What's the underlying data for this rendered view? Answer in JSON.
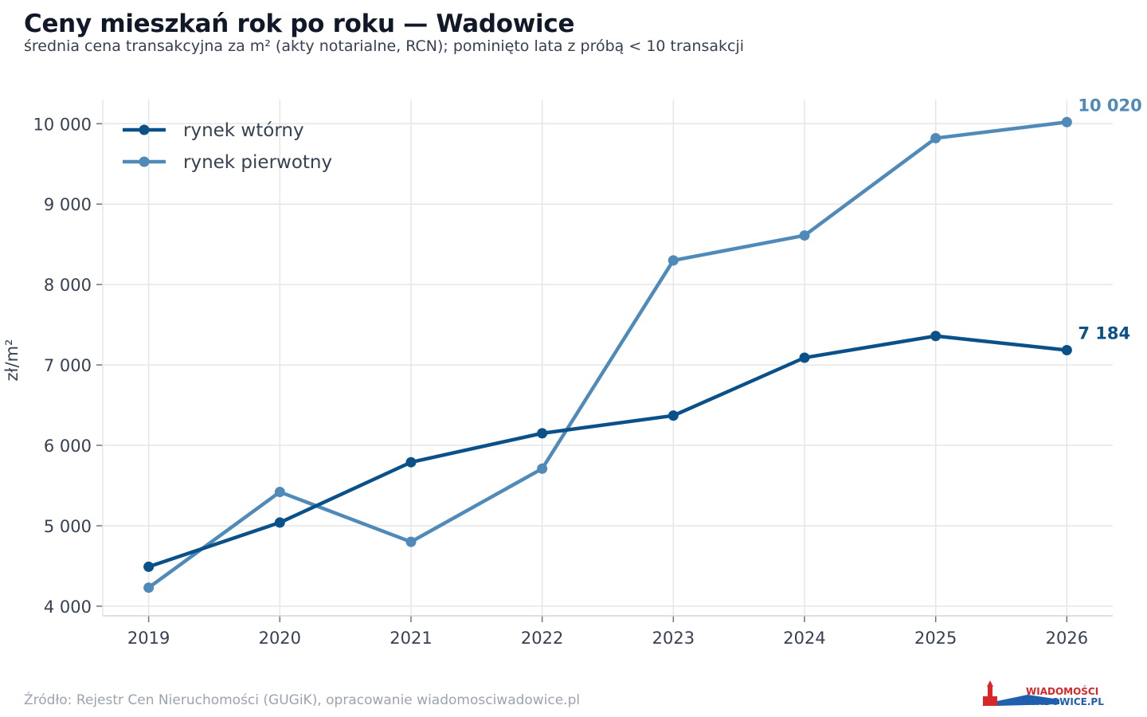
{
  "chart_data": {
    "type": "line",
    "title": "Ceny mieszkań rok po roku — Wadowice",
    "subtitle": "średnia cena transakcyjna za m² (akty notarialne, RCN); pominięto lata z próbą < 10 transakcji",
    "ylabel": "zł/m²",
    "xlabel": "",
    "x": [
      "2019",
      "2020",
      "2021",
      "2022",
      "2023",
      "2024",
      "2025",
      "2026"
    ],
    "xlim": [
      2018.65,
      2026.35
    ],
    "ylim": [
      3880,
      10300
    ],
    "yticks": [
      4000,
      5000,
      6000,
      7000,
      8000,
      9000,
      10000
    ],
    "ytick_labels": [
      "4 000",
      "5 000",
      "6 000",
      "7 000",
      "8 000",
      "9 000",
      "10 000"
    ],
    "grid": true,
    "legend_position": "top-left",
    "series": [
      {
        "name": "rynek wtórny",
        "color": "#0b5189",
        "values": [
          4490,
          5040,
          5790,
          6150,
          6370,
          7090,
          7360,
          7184
        ],
        "end_label": "7 184"
      },
      {
        "name": "rynek pierwotny",
        "color": "#4f8ab9",
        "values": [
          4230,
          5420,
          4800,
          5710,
          8300,
          8610,
          9820,
          10020
        ],
        "end_label": "10 020"
      }
    ]
  },
  "source": "Źródło: Rejestr Cen Nieruchomości (GUGiK), opracowanie wiadomosciwadowice.pl",
  "logo": {
    "line1": "WIADOMOŚCI",
    "line2": "WADOWICE.PL",
    "color_red": "#d62828",
    "color_blue": "#1f5fae"
  }
}
